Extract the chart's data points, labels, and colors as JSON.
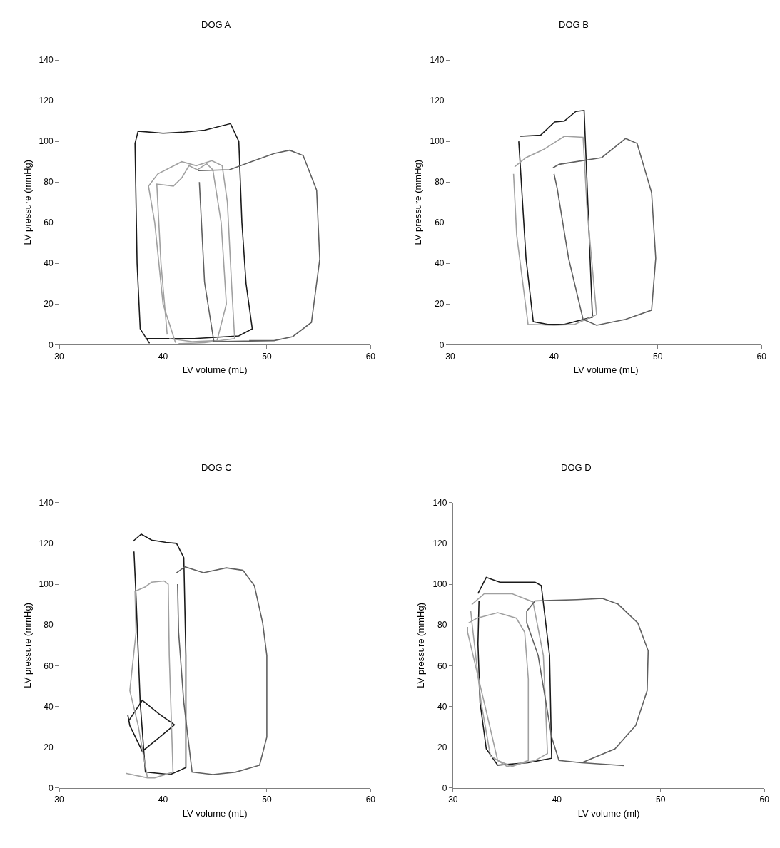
{
  "chart_data": [
    {
      "type": "line",
      "title": "DOG A",
      "xlabel": "LV volume (mL)",
      "ylabel": "LV pressure (mmHg)",
      "xlim": [
        30,
        60
      ],
      "xticks": [
        30,
        40,
        50,
        60
      ],
      "ylim": [
        0,
        140
      ],
      "yticks": [
        0,
        20,
        40,
        60,
        80,
        100,
        120,
        140
      ],
      "series": [
        {
          "color": "#1a1a1a",
          "x": [
            38.7,
            37.8,
            37.5,
            37.3,
            37.6,
            40,
            42,
            44,
            46.5,
            47.3,
            47.6,
            48,
            48.6,
            47.3,
            43,
            38.3
          ],
          "values": [
            0.7,
            7.8,
            40,
            99,
            105,
            104,
            104.5,
            105.5,
            108.7,
            100,
            60,
            30,
            7.8,
            4.3,
            3,
            3
          ]
        },
        {
          "color": "#a0a0a0",
          "x": [
            41.2,
            40,
            39.2,
            38.6,
            39.5,
            41.8,
            43.2,
            44.7,
            45.7,
            46.2,
            46.6,
            46.9,
            44,
            41.5
          ],
          "values": [
            1,
            20,
            60,
            78,
            84,
            90,
            88,
            90.5,
            88,
            70,
            30,
            3,
            1,
            0.5
          ]
        },
        {
          "color": "#a0a0a0",
          "x": [
            40.4,
            39.8,
            39.4,
            41,
            41.8,
            42.5,
            43.3,
            44.2,
            44.8,
            45.6,
            46.1,
            45.2,
            42.8,
            40.6
          ],
          "values": [
            5,
            40,
            79,
            78,
            82,
            88,
            86,
            89,
            86,
            60,
            20,
            2,
            1.5,
            3
          ]
        },
        {
          "color": "#606060",
          "x": [
            43.4,
            46.4,
            48.5,
            50.7,
            52.2,
            53.5,
            54.8,
            55.1,
            54.3,
            52.5,
            50.7,
            48.3,
            50.7,
            44.9,
            44,
            43.5
          ],
          "values": [
            85.6,
            86,
            90,
            94,
            95.6,
            93,
            76,
            42,
            11,
            4,
            2,
            2,
            2,
            1.5,
            30.7,
            80
          ]
        }
      ]
    },
    {
      "type": "line",
      "title": "DOG B",
      "xlabel": "LV volume (mL)",
      "ylabel": "LV pressure (mmHg)",
      "xlim": [
        30,
        60
      ],
      "xticks": [
        30,
        40,
        50,
        60
      ],
      "ylim": [
        0,
        140
      ],
      "yticks": [
        0,
        20,
        40,
        60,
        80,
        100,
        120,
        140
      ],
      "series": [
        {
          "color": "#1a1a1a",
          "x": [
            36.75,
            38.7,
            40.05,
            41,
            42.1,
            42.9,
            43.2,
            43.7,
            41,
            39.4,
            38,
            37.3,
            36.75,
            36.6
          ],
          "values": [
            102.5,
            103,
            109.5,
            110,
            114.7,
            115.2,
            77,
            13.6,
            10,
            10,
            11.3,
            42.5,
            88,
            100
          ]
        },
        {
          "color": "#a0a0a0",
          "x": [
            36.2,
            37.3,
            39,
            41,
            42.8,
            43.2,
            44.1,
            42,
            40,
            37.5,
            36.4,
            36.1
          ],
          "values": [
            87.5,
            92,
            96,
            102.5,
            102,
            65.6,
            14.8,
            10,
            9.6,
            10,
            54,
            84
          ]
        },
        {
          "color": "#606060",
          "x": [
            39.9,
            40.5,
            44.6,
            46.9,
            48,
            49.4,
            49.8,
            49.4,
            46.9,
            44.1,
            42.8,
            41.4,
            40.3,
            40
          ],
          "values": [
            87,
            88.7,
            92,
            101.4,
            99,
            74.8,
            42.5,
            17,
            12.5,
            9.6,
            12.5,
            42.5,
            77,
            84
          ]
        }
      ]
    },
    {
      "type": "line",
      "title": "DOG C",
      "xlabel": "LV volume (mL)",
      "ylabel": "LV pressure (mmHg)",
      "xlim": [
        30,
        60
      ],
      "xticks": [
        30,
        40,
        50,
        60
      ],
      "ylim": [
        0,
        140
      ],
      "yticks": [
        0,
        20,
        40,
        60,
        80,
        100,
        120,
        140
      ],
      "series": [
        {
          "color": "#1a1a1a",
          "x": [
            37.1,
            37.9,
            38.9,
            40.3,
            41.3,
            42,
            42.2,
            42.2,
            40.7,
            38.3,
            37.8,
            37.4,
            37.2
          ],
          "values": [
            121,
            124.5,
            121.6,
            120.5,
            120,
            113,
            65,
            10,
            6.6,
            7.8,
            42,
            93.6,
            116
          ]
        },
        {
          "color": "#1a1a1a",
          "x": [
            36.7,
            38,
            39.6,
            41.1,
            39.7,
            38,
            36.8,
            36.6
          ],
          "values": [
            33,
            43,
            36.4,
            31,
            25,
            18,
            30.6,
            36
          ]
        },
        {
          "color": "#a0a0a0",
          "x": [
            36.4,
            38.5,
            39.2,
            40.96,
            40.6,
            40.5,
            40.1,
            38.9,
            38.3,
            37.3,
            37.4,
            36.8,
            37.6,
            38.5
          ],
          "values": [
            7.2,
            5,
            5,
            7.8,
            65,
            100,
            101.6,
            101,
            98.7,
            96.5,
            76.4,
            47.8,
            30.7,
            5
          ]
        },
        {
          "color": "#606060",
          "x": [
            41.3,
            42.1,
            43.9,
            46.1,
            47.7,
            48.8,
            49.6,
            50,
            50,
            49.3,
            47,
            44.8,
            42.8,
            42,
            41.5,
            41.4
          ],
          "values": [
            105.6,
            108.5,
            105.6,
            108,
            106.8,
            99.3,
            81,
            65,
            25,
            11.2,
            7.8,
            6.6,
            7.8,
            42,
            76.4,
            100
          ]
        }
      ]
    },
    {
      "type": "line",
      "title": "DOG D",
      "xlabel": "LV volume (ml)",
      "ylabel": "LV pressure (mmHg)",
      "xlim": [
        30,
        60
      ],
      "xticks": [
        30,
        40,
        50,
        60
      ],
      "ylim": [
        0,
        140
      ],
      "yticks": [
        0,
        20,
        40,
        60,
        80,
        100,
        120,
        140
      ],
      "series": [
        {
          "color": "#1a1a1a",
          "x": [
            32.4,
            33.2,
            34.5,
            37.9,
            38.5,
            39.3,
            39.5,
            37.2,
            34.3,
            33.2,
            32.6,
            32.4,
            32.5
          ],
          "values": [
            95.4,
            103.3,
            101,
            101,
            99.3,
            65,
            14.6,
            12.4,
            11.2,
            19.2,
            42,
            70.7,
            92
          ]
        },
        {
          "color": "#a0a0a0",
          "x": [
            31.8,
            33,
            35.7,
            37.7,
            38.7,
            39.1,
            37.9,
            35.2,
            33.6,
            32.7,
            31.8,
            31.7
          ],
          "values": [
            90,
            95.3,
            95.3,
            91.3,
            65,
            16.9,
            13.5,
            10.6,
            15.8,
            42,
            82,
            87
          ]
        },
        {
          "color": "#a0a0a0",
          "x": [
            31.5,
            32.3,
            34.3,
            36.1,
            36.9,
            37.25,
            37.25,
            35.7,
            34.3,
            33,
            31.4,
            31.4
          ],
          "values": [
            81,
            83.3,
            86,
            83.3,
            76.4,
            53.5,
            13.5,
            10.6,
            13.5,
            42,
            76.4,
            79
          ]
        },
        {
          "color": "#606060",
          "x": [
            46.5,
            42.4,
            45.6,
            47.6,
            48.7,
            48.8,
            47.8,
            45.9,
            44.4,
            41.95,
            37.9,
            37.1,
            37.1,
            38.2,
            39.5,
            40.2,
            42.4
          ],
          "values": [
            11,
            12.4,
            19.2,
            30.7,
            47.8,
            67.3,
            81,
            90.2,
            93,
            92.4,
            91.8,
            86.7,
            81,
            65,
            25,
            13.5,
            12.4
          ]
        }
      ]
    }
  ]
}
